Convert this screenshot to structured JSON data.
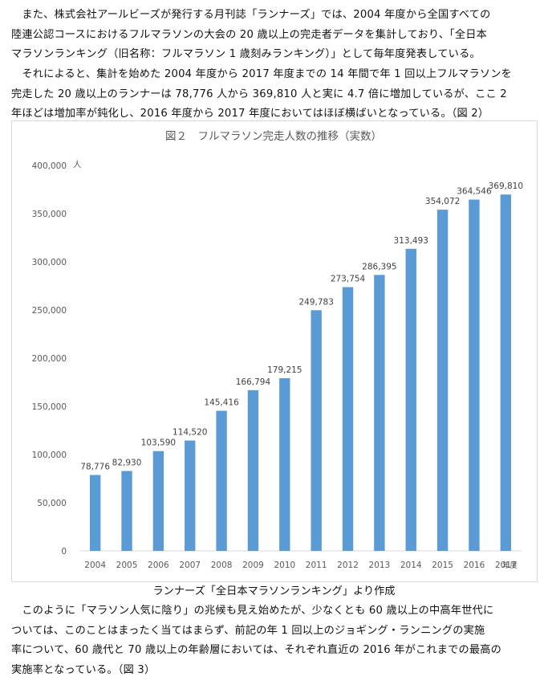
{
  "paragraphs": [
    {
      "lines": [
        "　また、株式会社アールビーズが発行する月刊誌「ランナーズ」では、2004 年度から全国すべての",
        "陸連公認コースにおけるフルマラソンの大会の 20 歳以上の完走者データを集計しており、「全日本",
        "マラソンランキング（旧名称：フルマラソン 1 歳刻みランキング）」として毎年度発表している。"
      ]
    },
    {
      "lines": [
        "　それによると、集計を始めた 2004 年度から 2017 年度までの 14 年間で年 1 回以上フルマラソンを",
        "完走した 20 歳以上のランナーは 78,776 人から 369,810 人と実に 4.7 倍に増加しているが、ここ 2",
        "年ほどは増加率が鈍化し、2016 年度から 2017 年度においてはほぼ横ばいとなっている。（図 2）"
      ]
    },
    {
      "lines": [
        "　このように「マラソン人気に陰り」の兆候も見え始めたが、少なくとも 60 歳以上の中高年世代に",
        "ついては、このことはまったく当てはまらず、前記の年 1 回以上のジョギング・ランニングの実施",
        "率について、60 歳代と 70 歳以上の年齢層においては、それぞれ直近の 2016 年がこれまでの最高の",
        "実施率となっている。（図 3）"
      ]
    }
  ],
  "caption": "ランナーズ「全日本マラソンランキング」より作成",
  "chart_data": {
    "type": "bar",
    "title": "図２　フルマラソン完走人数の推移（実数）",
    "ylabel": "人",
    "xlabel": "年度",
    "categories": [
      "2004",
      "2005",
      "2006",
      "2007",
      "2008",
      "2009",
      "2010",
      "2011",
      "2012",
      "2013",
      "2014",
      "2015",
      "2016",
      "2017"
    ],
    "values": [
      78776,
      82930,
      103590,
      114520,
      145416,
      166794,
      179215,
      249783,
      273754,
      286395,
      313493,
      354072,
      364546,
      369810
    ],
    "value_labels": [
      "78,776",
      "82,930",
      "103,590",
      "114,520",
      "145,416",
      "166,794",
      "179,215",
      "249,783",
      "273,754",
      "286,395",
      "313,493",
      "354,072",
      "364,546",
      "369,810"
    ],
    "yticks": [
      0,
      50000,
      100000,
      150000,
      200000,
      250000,
      300000,
      350000,
      400000
    ],
    "ytick_labels": [
      "0",
      "50,000",
      "100,000",
      "150,000",
      "200,000",
      "250,000",
      "300,000",
      "350,000",
      "400,000"
    ],
    "ylim": [
      0,
      400000
    ],
    "grid": false,
    "colors": {
      "bar": "#5b9bd5",
      "axis": "#d9d9d9",
      "text": "#595959"
    }
  }
}
